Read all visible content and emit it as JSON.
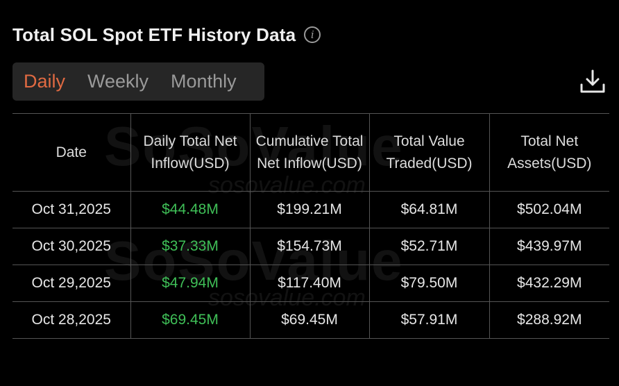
{
  "header": {
    "title": "Total SOL Spot ETF History Data"
  },
  "tabs": [
    {
      "label": "Daily",
      "active": true
    },
    {
      "label": "Weekly",
      "active": false
    },
    {
      "label": "Monthly",
      "active": false
    }
  ],
  "table": {
    "headers": [
      "Date",
      "Daily Total Net Inflow(USD)",
      "Cumulative Total Net Inflow(USD)",
      "Total Value Traded(USD)",
      "Total Net Assets(USD)"
    ],
    "rows": [
      [
        "Oct 31,2025",
        "$44.48M",
        "$199.21M",
        "$64.81M",
        "$502.04M"
      ],
      [
        "Oct 30,2025",
        "$37.33M",
        "$154.73M",
        "$52.71M",
        "$439.97M"
      ],
      [
        "Oct 29,2025",
        "$47.94M",
        "$117.40M",
        "$79.50M",
        "$432.29M"
      ],
      [
        "Oct 28,2025",
        "$69.45M",
        "$69.45M",
        "$57.91M",
        "$288.92M"
      ]
    ]
  },
  "watermark": {
    "logo": "SoSoValue",
    "url": "sosovalue.com"
  },
  "colors": {
    "active_tab": "#e06a42",
    "inflow_positive": "#3fbf57",
    "background": "#000000"
  },
  "icons": {
    "info": "info-icon",
    "download": "download-icon"
  }
}
